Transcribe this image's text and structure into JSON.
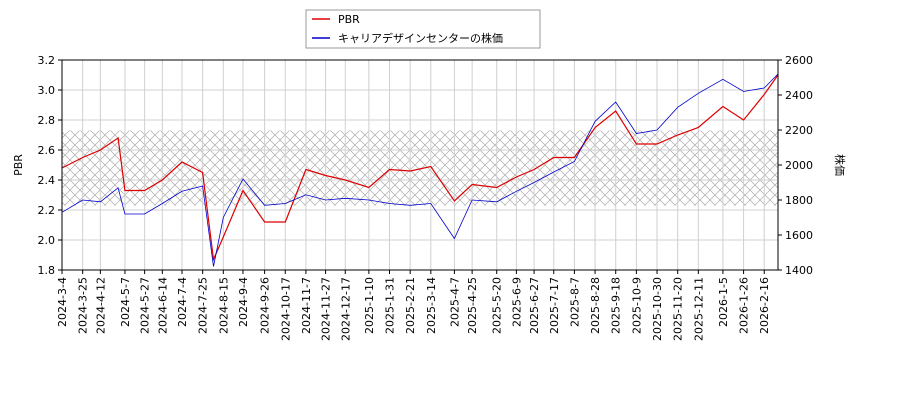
{
  "chart_data": {
    "type": "line",
    "ylabel": "PBR",
    "y2label": "株価",
    "x": [
      "2024-3-4",
      "2024-3-25",
      "2024-4-12",
      "2024-4-30",
      "2024-5-7",
      "2024-5-27",
      "2024-6-14",
      "2024-7-4",
      "2024-7-25",
      "2024-8-5",
      "2024-8-15",
      "2024-9-4",
      "2024-9-26",
      "2024-10-17",
      "2024-11-7",
      "2024-11-27",
      "2024-12-17",
      "2025-1-10",
      "2025-1-31",
      "2025-2-21",
      "2025-3-14",
      "2025-4-7",
      "2025-4-25",
      "2025-5-20",
      "2025-6-9",
      "2025-6-27",
      "2025-7-17",
      "2025-8-7",
      "2025-8-28",
      "2025-9-18",
      "2025-10-9",
      "2025-10-30",
      "2025-11-20",
      "2025-12-11",
      "2026-1-5",
      "2026-1-26",
      "2026-2-16",
      "2026-3-2"
    ],
    "series": [
      {
        "name": "PBR",
        "color": "#dd0000",
        "axis": "y",
        "values": [
          2.48,
          2.55,
          2.6,
          2.68,
          2.33,
          2.33,
          2.4,
          2.52,
          2.45,
          1.87,
          2.02,
          2.33,
          2.12,
          2.12,
          2.47,
          2.43,
          2.4,
          2.35,
          2.47,
          2.46,
          2.49,
          2.26,
          2.37,
          2.35,
          2.42,
          2.47,
          2.55,
          2.55,
          2.75,
          2.86,
          2.64,
          2.64,
          2.7,
          2.75,
          2.89,
          2.8,
          2.97,
          3.1
        ]
      },
      {
        "name": "キャリアデザインセンターの株価",
        "color": "#0000cc",
        "axis": "y2",
        "values": [
          1730,
          1800,
          1790,
          1870,
          1720,
          1720,
          1780,
          1850,
          1880,
          1420,
          1700,
          1920,
          1770,
          1780,
          1830,
          1800,
          1810,
          1800,
          1780,
          1770,
          1780,
          1580,
          1800,
          1790,
          1850,
          1900,
          1960,
          2020,
          2250,
          2360,
          2180,
          2200,
          2330,
          2410,
          2490,
          2420,
          2440,
          2520
        ]
      }
    ],
    "band": [
      2.23,
      2.73
    ],
    "xlim": [
      "2024-3-4",
      "2026-3-2"
    ],
    "xticks": [
      "2024-3-4",
      "2024-3-25",
      "2024-4-12",
      "2024-5-7",
      "2024-5-27",
      "2024-6-14",
      "2024-7-4",
      "2024-7-25",
      "2024-8-15",
      "2024-9-4",
      "2024-9-26",
      "2024-10-17",
      "2024-11-7",
      "2024-11-27",
      "2024-12-17",
      "2025-1-10",
      "2025-1-31",
      "2025-2-21",
      "2025-3-14",
      "2025-4-7",
      "2025-4-25",
      "2025-5-20",
      "2025-6-9",
      "2025-6-27",
      "2025-7-17",
      "2025-8-7",
      "2025-8-28",
      "2025-9-18",
      "2025-10-9",
      "2025-10-30",
      "2025-11-20",
      "2025-12-11",
      "2026-1-5",
      "2026-1-26",
      "2026-2-16"
    ],
    "ylim": [
      1.8,
      3.2
    ],
    "yticks": [
      1.8,
      {
        "value": 2,
        "label": "2.0"
      },
      2.2,
      2.4,
      2.6,
      2.8,
      {
        "value": 3,
        "label": "3.0"
      },
      3.2
    ],
    "y2lim": [
      1400,
      2600
    ],
    "y2ticks": [
      1400,
      1600,
      1800,
      2000,
      2200,
      2400,
      2600
    ],
    "grid": true
  }
}
